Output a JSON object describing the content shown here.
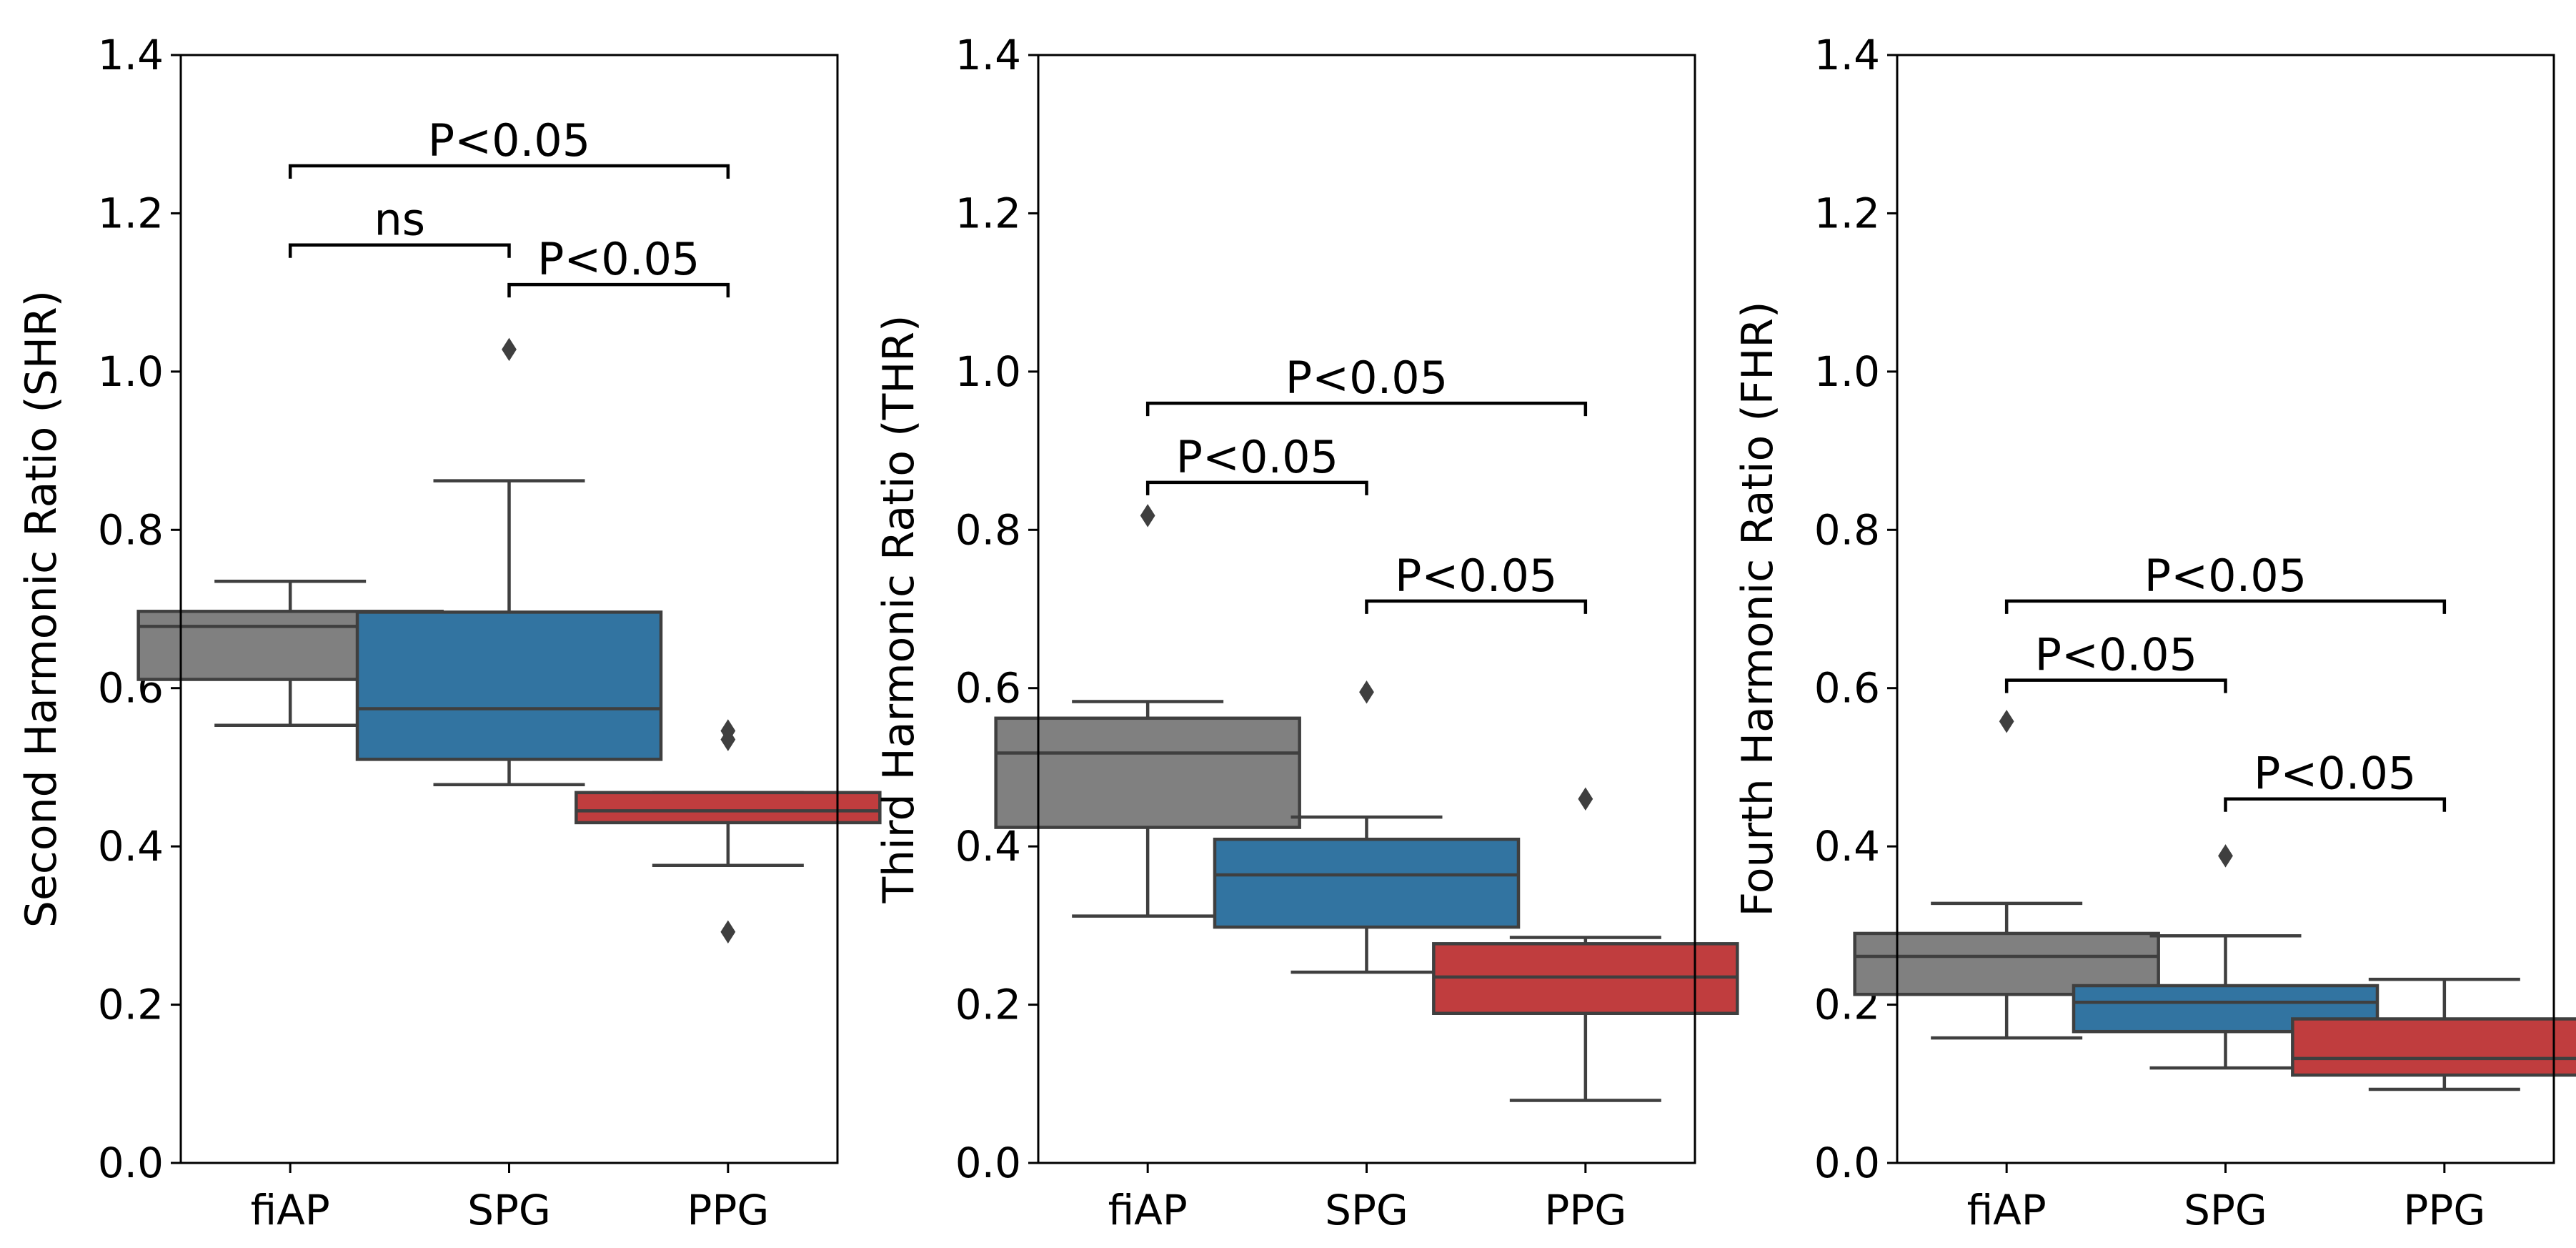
{
  "colors": {
    "fiAP": "#808080",
    "SPG": "#3274a1",
    "PPG": "#c03d3e"
  },
  "chart_data": [
    {
      "type": "box",
      "ylabel": "Second Harmonic Ratio (SHR)",
      "ylim": [
        0.0,
        1.4
      ],
      "yticks": [
        "0.0",
        "0.2",
        "0.4",
        "0.6",
        "0.8",
        "1.0",
        "1.2",
        "1.4"
      ],
      "categories": [
        "fiAP",
        "SPG",
        "PPG"
      ],
      "boxes": [
        {
          "name": "fiAP",
          "whislo": 0.553,
          "q1": 0.611,
          "med": 0.678,
          "q3": 0.697,
          "whishi": 0.735,
          "fliers": []
        },
        {
          "name": "SPG",
          "whislo": 0.478,
          "q1": 0.51,
          "med": 0.574,
          "q3": 0.696,
          "whishi": 0.862,
          "fliers": [
            1.028
          ]
        },
        {
          "name": "PPG",
          "whislo": 0.376,
          "q1": 0.43,
          "med": 0.445,
          "q3": 0.468,
          "whishi": 0.468,
          "fliers": [
            0.546,
            0.535,
            0.292
          ]
        }
      ],
      "significance": [
        {
          "from": 0,
          "to": 2,
          "y": 1.26,
          "label": "P<0.05"
        },
        {
          "from": 0,
          "to": 1,
          "y": 1.16,
          "label": "ns"
        },
        {
          "from": 1,
          "to": 2,
          "y": 1.11,
          "label": "P<0.05"
        }
      ]
    },
    {
      "type": "box",
      "ylabel": "Third Harmonic Ratio (THR)",
      "ylim": [
        0.0,
        1.4
      ],
      "yticks": [
        "0.0",
        "0.2",
        "0.4",
        "0.6",
        "0.8",
        "1.0",
        "1.2",
        "1.4"
      ],
      "categories": [
        "fiAP",
        "SPG",
        "PPG"
      ],
      "boxes": [
        {
          "name": "fiAP",
          "whislo": 0.312,
          "q1": 0.424,
          "med": 0.518,
          "q3": 0.562,
          "whishi": 0.583,
          "fliers": [
            0.818
          ]
        },
        {
          "name": "SPG",
          "whislo": 0.241,
          "q1": 0.298,
          "med": 0.364,
          "q3": 0.409,
          "whishi": 0.437,
          "fliers": [
            0.595
          ]
        },
        {
          "name": "PPG",
          "whislo": 0.079,
          "q1": 0.189,
          "med": 0.235,
          "q3": 0.277,
          "whishi": 0.285,
          "fliers": [
            0.46
          ]
        }
      ],
      "significance": [
        {
          "from": 0,
          "to": 2,
          "y": 0.96,
          "label": "P<0.05"
        },
        {
          "from": 0,
          "to": 1,
          "y": 0.86,
          "label": "P<0.05"
        },
        {
          "from": 1,
          "to": 2,
          "y": 0.71,
          "label": "P<0.05"
        }
      ]
    },
    {
      "type": "box",
      "ylabel": "Fourth Harmonic Ratio (FHR)",
      "ylim": [
        0.0,
        1.4
      ],
      "yticks": [
        "0.0",
        "0.2",
        "0.4",
        "0.6",
        "0.8",
        "1.0",
        "1.2",
        "1.4"
      ],
      "categories": [
        "fiAP",
        "SPG",
        "PPG"
      ],
      "boxes": [
        {
          "name": "fiAP",
          "whislo": 0.158,
          "q1": 0.213,
          "med": 0.261,
          "q3": 0.29,
          "whishi": 0.328,
          "fliers": [
            0.558
          ]
        },
        {
          "name": "SPG",
          "whislo": 0.12,
          "q1": 0.166,
          "med": 0.203,
          "q3": 0.224,
          "whishi": 0.287,
          "fliers": [
            0.388
          ]
        },
        {
          "name": "PPG",
          "whislo": 0.093,
          "q1": 0.111,
          "med": 0.132,
          "q3": 0.182,
          "whishi": 0.232,
          "fliers": []
        }
      ],
      "significance": [
        {
          "from": 0,
          "to": 2,
          "y": 0.71,
          "label": "P<0.05"
        },
        {
          "from": 0,
          "to": 1,
          "y": 0.61,
          "label": "P<0.05"
        },
        {
          "from": 1,
          "to": 2,
          "y": 0.46,
          "label": "P<0.05"
        }
      ]
    }
  ]
}
